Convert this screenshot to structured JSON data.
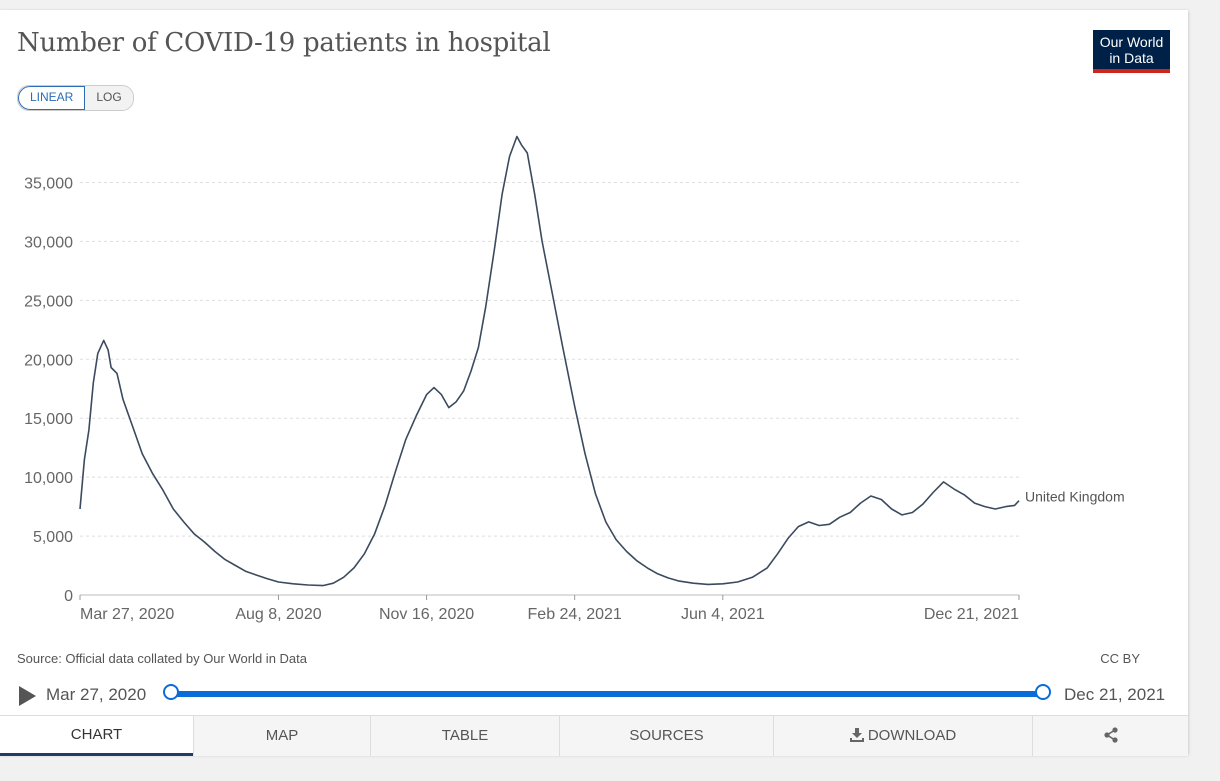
{
  "title": "Number of COVID-19 patients in hospital",
  "logo": {
    "line1": "Our World",
    "line2": "in Data"
  },
  "scale_toggle": {
    "linear_label": "LINEAR",
    "log_label": "LOG"
  },
  "source_text": "Source: Official data collated by Our World in Data",
  "license_text": "CC BY",
  "timeline": {
    "start_label": "Mar 27, 2020",
    "end_label": "Dec 21, 2021",
    "play_icon": "play-icon"
  },
  "tabs": [
    {
      "label": "CHART",
      "active": true
    },
    {
      "label": "MAP",
      "active": false
    },
    {
      "label": "TABLE",
      "active": false
    },
    {
      "label": "SOURCES",
      "active": false
    },
    {
      "label": "DOWNLOAD",
      "active": false,
      "icon": "download-icon"
    },
    {
      "label": "",
      "active": false,
      "icon": "share-icon"
    }
  ],
  "colors": {
    "line": "#3b4a5e",
    "accent": "#0a6cd8",
    "logo_bg": "#002147",
    "logo_bar": "#ce261e"
  },
  "chart_data": {
    "type": "line",
    "x_start": "2020-03-27",
    "x_end": "2021-12-21",
    "y_ticks": [
      0,
      5000,
      10000,
      15000,
      20000,
      25000,
      30000,
      35000
    ],
    "y_tick_labels": [
      "0",
      "5,000",
      "10,000",
      "15,000",
      "20,000",
      "25,000",
      "30,000",
      "35,000"
    ],
    "x_ticks": [
      {
        "date": "2020-03-27",
        "label": "Mar 27, 2020"
      },
      {
        "date": "2020-08-08",
        "label": "Aug 8, 2020"
      },
      {
        "date": "2020-11-16",
        "label": "Nov 16, 2020"
      },
      {
        "date": "2021-02-24",
        "label": "Feb 24, 2021"
      },
      {
        "date": "2021-06-04",
        "label": "Jun 4, 2021"
      },
      {
        "date": "2021-12-21",
        "label": "Dec 21, 2021"
      }
    ],
    "ylim": [
      0,
      40000
    ],
    "grid": true,
    "series": [
      {
        "name": "United Kingdom",
        "points": [
          [
            "2020-03-27",
            7300
          ],
          [
            "2020-03-30",
            11500
          ],
          [
            "2020-04-02",
            14000
          ],
          [
            "2020-04-05",
            18000
          ],
          [
            "2020-04-08",
            20500
          ],
          [
            "2020-04-12",
            21600
          ],
          [
            "2020-04-15",
            20800
          ],
          [
            "2020-04-17",
            19300
          ],
          [
            "2020-04-21",
            18800
          ],
          [
            "2020-04-25",
            16600
          ],
          [
            "2020-05-01",
            14500
          ],
          [
            "2020-05-08",
            12000
          ],
          [
            "2020-05-15",
            10300
          ],
          [
            "2020-05-22",
            8900
          ],
          [
            "2020-05-29",
            7300
          ],
          [
            "2020-06-05",
            6200
          ],
          [
            "2020-06-12",
            5200
          ],
          [
            "2020-06-19",
            4500
          ],
          [
            "2020-06-26",
            3700
          ],
          [
            "2020-07-03",
            3000
          ],
          [
            "2020-07-10",
            2500
          ],
          [
            "2020-07-17",
            2000
          ],
          [
            "2020-07-24",
            1700
          ],
          [
            "2020-07-31",
            1400
          ],
          [
            "2020-08-08",
            1100
          ],
          [
            "2020-08-18",
            950
          ],
          [
            "2020-08-28",
            850
          ],
          [
            "2020-09-07",
            800
          ],
          [
            "2020-09-14",
            1000
          ],
          [
            "2020-09-21",
            1500
          ],
          [
            "2020-09-28",
            2300
          ],
          [
            "2020-10-05",
            3500
          ],
          [
            "2020-10-12",
            5200
          ],
          [
            "2020-10-19",
            7600
          ],
          [
            "2020-10-26",
            10500
          ],
          [
            "2020-11-02",
            13200
          ],
          [
            "2020-11-09",
            15200
          ],
          [
            "2020-11-16",
            17000
          ],
          [
            "2020-11-21",
            17600
          ],
          [
            "2020-11-26",
            17000
          ],
          [
            "2020-12-01",
            15900
          ],
          [
            "2020-12-06",
            16400
          ],
          [
            "2020-12-11",
            17300
          ],
          [
            "2020-12-16",
            19000
          ],
          [
            "2020-12-21",
            21000
          ],
          [
            "2020-12-26",
            24500
          ],
          [
            "2021-01-01",
            29500
          ],
          [
            "2021-01-06",
            34000
          ],
          [
            "2021-01-11",
            37200
          ],
          [
            "2021-01-16",
            38900
          ],
          [
            "2021-01-19",
            38200
          ],
          [
            "2021-01-23",
            37500
          ],
          [
            "2021-01-28",
            34000
          ],
          [
            "2021-02-02",
            30000
          ],
          [
            "2021-02-09",
            25500
          ],
          [
            "2021-02-16",
            21000
          ],
          [
            "2021-02-24",
            16000
          ],
          [
            "2021-03-03",
            12000
          ],
          [
            "2021-03-10",
            8600
          ],
          [
            "2021-03-17",
            6200
          ],
          [
            "2021-03-24",
            4700
          ],
          [
            "2021-03-31",
            3700
          ],
          [
            "2021-04-07",
            2900
          ],
          [
            "2021-04-14",
            2300
          ],
          [
            "2021-04-21",
            1800
          ],
          [
            "2021-04-28",
            1450
          ],
          [
            "2021-05-05",
            1200
          ],
          [
            "2021-05-15",
            1000
          ],
          [
            "2021-05-25",
            900
          ],
          [
            "2021-06-04",
            950
          ],
          [
            "2021-06-14",
            1100
          ],
          [
            "2021-06-24",
            1500
          ],
          [
            "2021-07-04",
            2300
          ],
          [
            "2021-07-11",
            3500
          ],
          [
            "2021-07-18",
            4800
          ],
          [
            "2021-07-25",
            5800
          ],
          [
            "2021-08-01",
            6200
          ],
          [
            "2021-08-08",
            5900
          ],
          [
            "2021-08-15",
            6000
          ],
          [
            "2021-08-22",
            6600
          ],
          [
            "2021-08-29",
            7000
          ],
          [
            "2021-09-05",
            7800
          ],
          [
            "2021-09-12",
            8400
          ],
          [
            "2021-09-19",
            8100
          ],
          [
            "2021-09-26",
            7300
          ],
          [
            "2021-10-03",
            6800
          ],
          [
            "2021-10-10",
            7000
          ],
          [
            "2021-10-17",
            7700
          ],
          [
            "2021-10-24",
            8700
          ],
          [
            "2021-10-31",
            9600
          ],
          [
            "2021-11-07",
            9000
          ],
          [
            "2021-11-14",
            8500
          ],
          [
            "2021-11-21",
            7800
          ],
          [
            "2021-11-28",
            7500
          ],
          [
            "2021-12-05",
            7300
          ],
          [
            "2021-12-12",
            7500
          ],
          [
            "2021-12-18",
            7600
          ],
          [
            "2021-12-21",
            8000
          ]
        ]
      }
    ]
  }
}
